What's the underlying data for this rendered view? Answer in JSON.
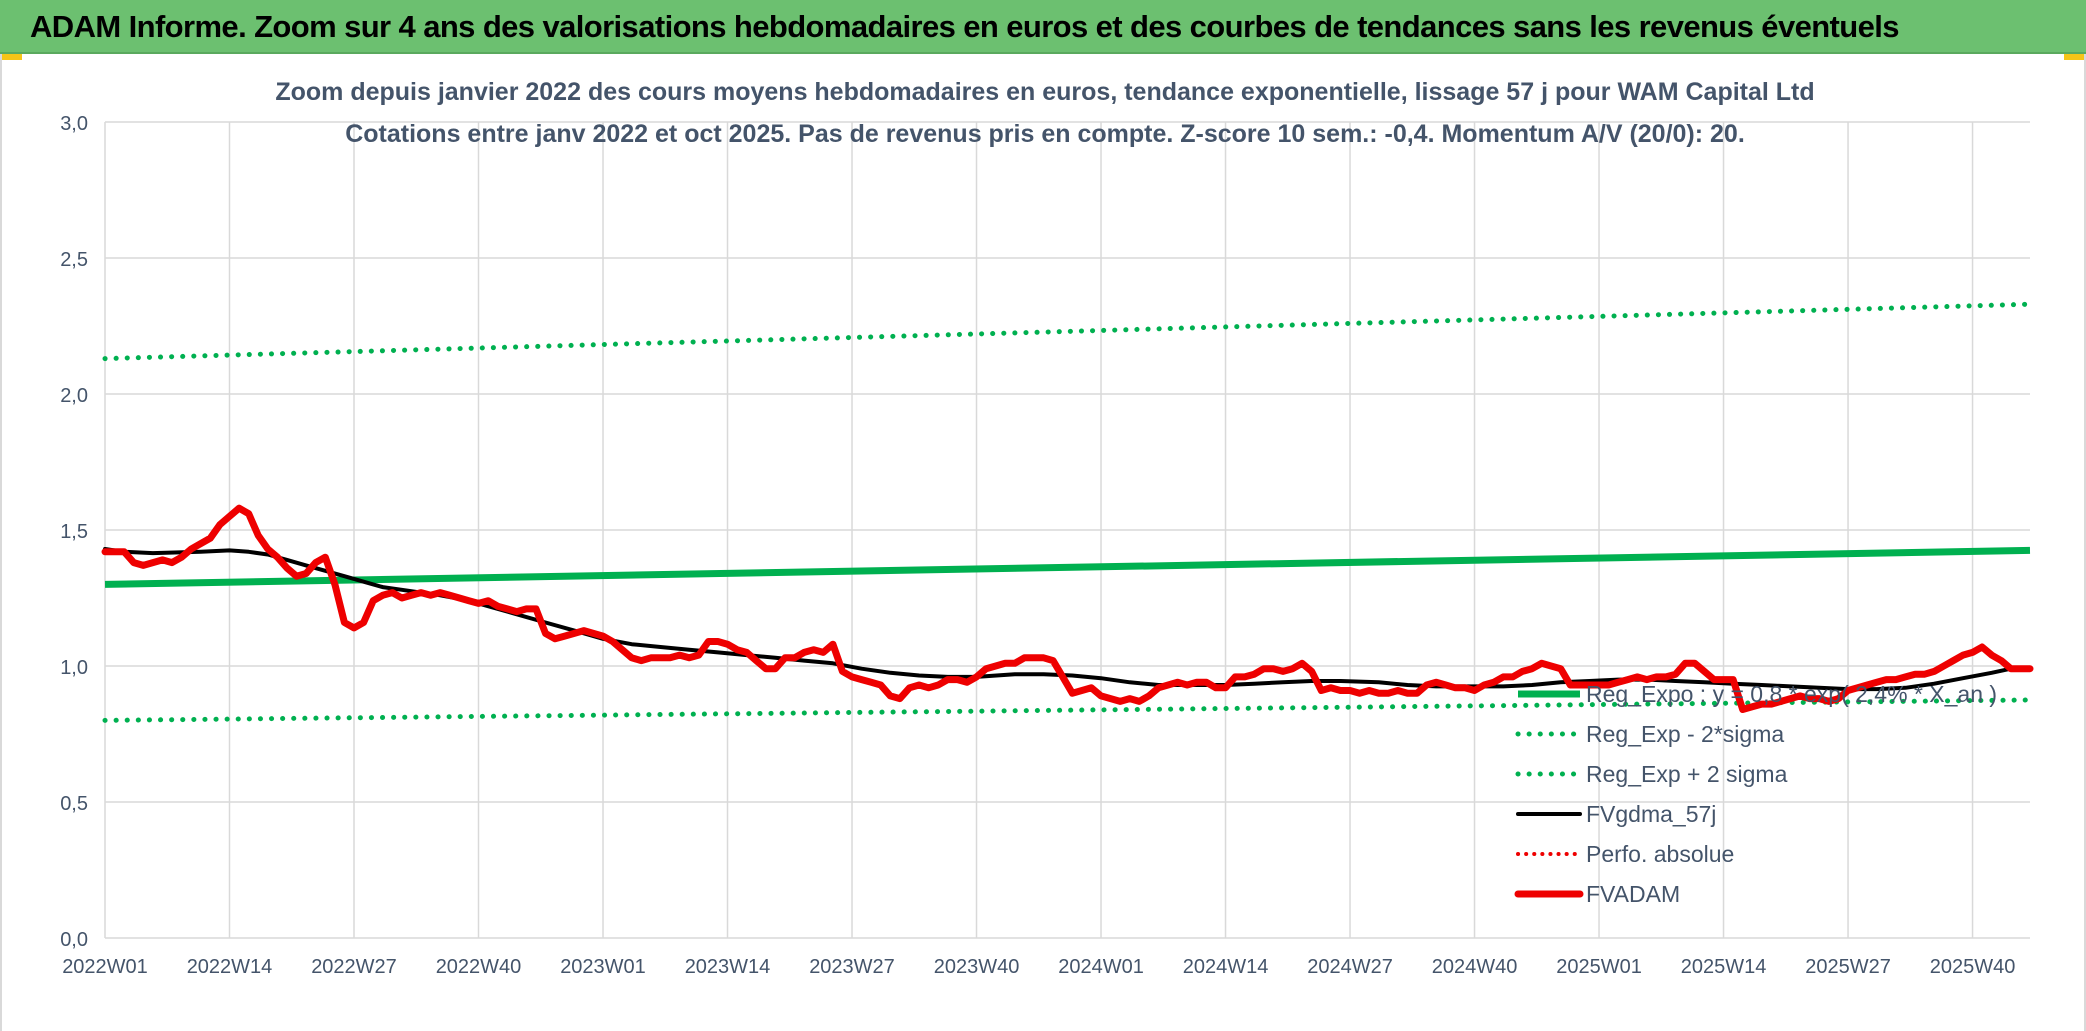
{
  "banner": {
    "title": "ADAM Informe. Zoom sur 4 ans des valorisations hebdomadaires en euros et des courbes de tendances sans les revenus éventuels"
  },
  "colors": {
    "banner_bg": "#6cc070",
    "green": "#00b050",
    "black": "#000000",
    "red": "#ee0000",
    "grid": "#d9d9d9",
    "text": "#44546a"
  },
  "chart_data": {
    "type": "line",
    "title_line1": "Zoom depuis janvier 2022 des cours moyens hebdomadaires en euros, tendance exponentielle, lissage 57 j pour WAM Capital Ltd",
    "title_line2": "Cotations entre janv 2022 et oct 2025. Pas de revenus pris en compte. Z-score 10 sem.: -0,4. Momentum A/V (20/0): 20.",
    "ylim": [
      0,
      3
    ],
    "y_ticks": [
      "0,0",
      "0,5",
      "1,0",
      "1,5",
      "2,0",
      "2,5",
      "3,0"
    ],
    "x_ticks": [
      "2022W01",
      "2022W14",
      "2022W27",
      "2022W40",
      "2023W01",
      "2023W14",
      "2023W27",
      "2023W40",
      "2024W01",
      "2024W14",
      "2024W27",
      "2024W40",
      "2025W01",
      "2025W14",
      "2025W27",
      "2025W40"
    ],
    "grid": "vertical and horizontal",
    "legend_position": "bottom-right",
    "series": [
      {
        "name": "Reg_Expo : y = 0,8 * exp( 2,4% * X_an )",
        "style": "solid-green-thick",
        "points": [
          [
            0,
            1.3
          ],
          [
            201,
            1.425
          ]
        ]
      },
      {
        "name": "Reg_Exp - 2*sigma",
        "style": "dotted-green",
        "points": [
          [
            0,
            0.8
          ],
          [
            201,
            0.875
          ]
        ]
      },
      {
        "name": "Reg_Exp + 2 sigma",
        "style": "dotted-green",
        "points": [
          [
            0,
            2.13
          ],
          [
            201,
            2.33
          ]
        ]
      },
      {
        "name": "FVgdma_57j",
        "style": "solid-black",
        "points": [
          [
            0,
            1.43
          ],
          [
            2,
            1.42
          ],
          [
            5,
            1.415
          ],
          [
            10,
            1.42
          ],
          [
            13,
            1.425
          ],
          [
            15,
            1.42
          ],
          [
            17,
            1.41
          ],
          [
            19,
            1.39
          ],
          [
            21,
            1.37
          ],
          [
            23,
            1.35
          ],
          [
            25,
            1.33
          ],
          [
            27,
            1.31
          ],
          [
            29,
            1.29
          ],
          [
            31,
            1.28
          ],
          [
            33,
            1.27
          ],
          [
            35,
            1.26
          ],
          [
            38,
            1.24
          ],
          [
            40,
            1.22
          ],
          [
            43,
            1.19
          ],
          [
            46,
            1.16
          ],
          [
            49,
            1.13
          ],
          [
            52,
            1.1
          ],
          [
            55,
            1.08
          ],
          [
            58,
            1.07
          ],
          [
            61,
            1.06
          ],
          [
            64,
            1.05
          ],
          [
            67,
            1.04
          ],
          [
            70,
            1.03
          ],
          [
            73,
            1.02
          ],
          [
            76,
            1.01
          ],
          [
            79,
            0.99
          ],
          [
            82,
            0.975
          ],
          [
            85,
            0.965
          ],
          [
            88,
            0.96
          ],
          [
            91,
            0.96
          ],
          [
            95,
            0.97
          ],
          [
            98,
            0.97
          ],
          [
            101,
            0.965
          ],
          [
            104,
            0.955
          ],
          [
            107,
            0.94
          ],
          [
            110,
            0.93
          ],
          [
            113,
            0.93
          ],
          [
            117,
            0.93
          ],
          [
            120,
            0.935
          ],
          [
            123,
            0.94
          ],
          [
            126,
            0.945
          ],
          [
            129,
            0.945
          ],
          [
            133,
            0.94
          ],
          [
            136,
            0.93
          ],
          [
            139,
            0.925
          ],
          [
            143,
            0.925
          ],
          [
            146,
            0.925
          ],
          [
            149,
            0.93
          ],
          [
            152,
            0.94
          ],
          [
            155,
            0.945
          ],
          [
            158,
            0.95
          ],
          [
            161,
            0.95
          ],
          [
            164,
            0.945
          ],
          [
            167,
            0.94
          ],
          [
            170,
            0.935
          ],
          [
            173,
            0.93
          ],
          [
            176,
            0.925
          ],
          [
            179,
            0.92
          ],
          [
            182,
            0.915
          ],
          [
            185,
            0.915
          ],
          [
            188,
            0.92
          ],
          [
            191,
            0.935
          ],
          [
            194,
            0.955
          ],
          [
            197,
            0.975
          ],
          [
            199,
            0.99
          ],
          [
            201,
            0.99
          ]
        ]
      },
      {
        "name": "Perfo. absolue",
        "style": "dotted-red",
        "points": []
      },
      {
        "name": "FVADAM",
        "style": "solid-red-thick",
        "points": [
          [
            0,
            1.42
          ],
          [
            2,
            1.42
          ],
          [
            3,
            1.38
          ],
          [
            4,
            1.37
          ],
          [
            6,
            1.39
          ],
          [
            7,
            1.38
          ],
          [
            8,
            1.4
          ],
          [
            9,
            1.43
          ],
          [
            10,
            1.45
          ],
          [
            11,
            1.47
          ],
          [
            12,
            1.52
          ],
          [
            13,
            1.55
          ],
          [
            14,
            1.58
          ],
          [
            15,
            1.56
          ],
          [
            16,
            1.48
          ],
          [
            17,
            1.43
          ],
          [
            18,
            1.4
          ],
          [
            19,
            1.36
          ],
          [
            20,
            1.33
          ],
          [
            21,
            1.34
          ],
          [
            22,
            1.38
          ],
          [
            23,
            1.4
          ],
          [
            24,
            1.3
          ],
          [
            25,
            1.16
          ],
          [
            26,
            1.14
          ],
          [
            27,
            1.16
          ],
          [
            28,
            1.24
          ],
          [
            29,
            1.26
          ],
          [
            30,
            1.27
          ],
          [
            31,
            1.25
          ],
          [
            32,
            1.26
          ],
          [
            33,
            1.27
          ],
          [
            34,
            1.26
          ],
          [
            35,
            1.27
          ],
          [
            36,
            1.26
          ],
          [
            37,
            1.25
          ],
          [
            38,
            1.24
          ],
          [
            39,
            1.23
          ],
          [
            40,
            1.24
          ],
          [
            41,
            1.22
          ],
          [
            42,
            1.21
          ],
          [
            43,
            1.2
          ],
          [
            44,
            1.21
          ],
          [
            45,
            1.21
          ],
          [
            46,
            1.12
          ],
          [
            47,
            1.1
          ],
          [
            48,
            1.11
          ],
          [
            49,
            1.12
          ],
          [
            50,
            1.13
          ],
          [
            51,
            1.12
          ],
          [
            52,
            1.11
          ],
          [
            53,
            1.09
          ],
          [
            54,
            1.06
          ],
          [
            55,
            1.03
          ],
          [
            56,
            1.02
          ],
          [
            57,
            1.03
          ],
          [
            58,
            1.03
          ],
          [
            59,
            1.03
          ],
          [
            60,
            1.04
          ],
          [
            61,
            1.03
          ],
          [
            62,
            1.04
          ],
          [
            63,
            1.09
          ],
          [
            64,
            1.09
          ],
          [
            65,
            1.08
          ],
          [
            66,
            1.06
          ],
          [
            67,
            1.05
          ],
          [
            68,
            1.02
          ],
          [
            69,
            0.99
          ],
          [
            70,
            0.99
          ],
          [
            71,
            1.03
          ],
          [
            72,
            1.03
          ],
          [
            73,
            1.05
          ],
          [
            74,
            1.06
          ],
          [
            75,
            1.05
          ],
          [
            76,
            1.08
          ],
          [
            77,
            0.98
          ],
          [
            78,
            0.96
          ],
          [
            79,
            0.95
          ],
          [
            80,
            0.94
          ],
          [
            81,
            0.93
          ],
          [
            82,
            0.89
          ],
          [
            83,
            0.88
          ],
          [
            84,
            0.92
          ],
          [
            85,
            0.93
          ],
          [
            86,
            0.92
          ],
          [
            87,
            0.93
          ],
          [
            88,
            0.95
          ],
          [
            89,
            0.95
          ],
          [
            90,
            0.94
          ],
          [
            91,
            0.96
          ],
          [
            92,
            0.99
          ],
          [
            93,
            1.0
          ],
          [
            94,
            1.01
          ],
          [
            95,
            1.01
          ],
          [
            96,
            1.03
          ],
          [
            97,
            1.03
          ],
          [
            98,
            1.03
          ],
          [
            99,
            1.02
          ],
          [
            100,
            0.96
          ],
          [
            101,
            0.9
          ],
          [
            102,
            0.91
          ],
          [
            103,
            0.92
          ],
          [
            104,
            0.89
          ],
          [
            105,
            0.88
          ],
          [
            106,
            0.87
          ],
          [
            107,
            0.88
          ],
          [
            108,
            0.87
          ],
          [
            109,
            0.89
          ],
          [
            110,
            0.92
          ],
          [
            111,
            0.93
          ],
          [
            112,
            0.94
          ],
          [
            113,
            0.93
          ],
          [
            114,
            0.94
          ],
          [
            115,
            0.94
          ],
          [
            116,
            0.92
          ],
          [
            117,
            0.92
          ],
          [
            118,
            0.96
          ],
          [
            119,
            0.96
          ],
          [
            120,
            0.97
          ],
          [
            121,
            0.99
          ],
          [
            122,
            0.99
          ],
          [
            123,
            0.98
          ],
          [
            124,
            0.99
          ],
          [
            125,
            1.01
          ],
          [
            126,
            0.98
          ],
          [
            127,
            0.91
          ],
          [
            128,
            0.92
          ],
          [
            129,
            0.91
          ],
          [
            130,
            0.91
          ],
          [
            131,
            0.9
          ],
          [
            132,
            0.91
          ],
          [
            133,
            0.9
          ],
          [
            134,
            0.9
          ],
          [
            135,
            0.91
          ],
          [
            136,
            0.9
          ],
          [
            137,
            0.9
          ],
          [
            138,
            0.93
          ],
          [
            139,
            0.94
          ],
          [
            140,
            0.93
          ],
          [
            141,
            0.92
          ],
          [
            142,
            0.92
          ],
          [
            143,
            0.91
          ],
          [
            144,
            0.93
          ],
          [
            145,
            0.94
          ],
          [
            146,
            0.96
          ],
          [
            147,
            0.96
          ],
          [
            148,
            0.98
          ],
          [
            149,
            0.99
          ],
          [
            150,
            1.01
          ],
          [
            151,
            1.0
          ],
          [
            152,
            0.99
          ],
          [
            153,
            0.93
          ],
          [
            154,
            0.93
          ],
          [
            155,
            0.93
          ],
          [
            156,
            0.93
          ],
          [
            157,
            0.93
          ],
          [
            158,
            0.94
          ],
          [
            159,
            0.95
          ],
          [
            160,
            0.96
          ],
          [
            161,
            0.95
          ],
          [
            162,
            0.96
          ],
          [
            163,
            0.96
          ],
          [
            164,
            0.97
          ],
          [
            165,
            1.01
          ],
          [
            166,
            1.01
          ],
          [
            167,
            0.98
          ],
          [
            168,
            0.95
          ],
          [
            169,
            0.95
          ],
          [
            170,
            0.95
          ],
          [
            171,
            0.84
          ],
          [
            172,
            0.85
          ],
          [
            173,
            0.86
          ],
          [
            174,
            0.86
          ],
          [
            175,
            0.87
          ],
          [
            176,
            0.88
          ],
          [
            177,
            0.89
          ],
          [
            178,
            0.88
          ],
          [
            179,
            0.88
          ],
          [
            180,
            0.87
          ],
          [
            181,
            0.88
          ],
          [
            182,
            0.91
          ],
          [
            183,
            0.92
          ],
          [
            184,
            0.93
          ],
          [
            185,
            0.94
          ],
          [
            186,
            0.95
          ],
          [
            187,
            0.95
          ],
          [
            188,
            0.96
          ],
          [
            189,
            0.97
          ],
          [
            190,
            0.97
          ],
          [
            191,
            0.98
          ],
          [
            192,
            1.0
          ],
          [
            193,
            1.02
          ],
          [
            194,
            1.04
          ],
          [
            195,
            1.05
          ],
          [
            196,
            1.07
          ],
          [
            197,
            1.04
          ],
          [
            198,
            1.02
          ],
          [
            199,
            0.99
          ],
          [
            200,
            0.99
          ],
          [
            201,
            0.99
          ]
        ]
      }
    ]
  }
}
